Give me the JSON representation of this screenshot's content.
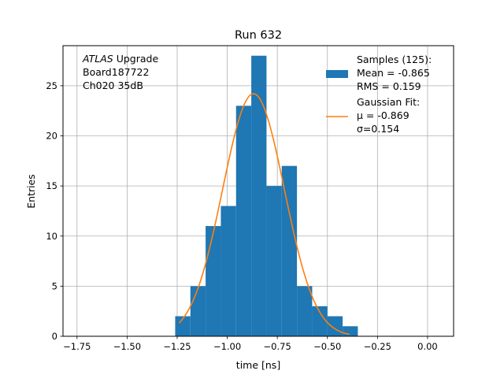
{
  "chart_data": {
    "type": "bar",
    "title": "Run 632",
    "xlabel": "time [ns]",
    "ylabel": "Entries",
    "xlim": [
      -1.82,
      0.13
    ],
    "ylim": [
      0,
      29
    ],
    "grid": true,
    "legend_placement": "top-right",
    "x_ticks": [
      -1.75,
      -1.5,
      -1.25,
      -1.0,
      -0.75,
      -0.5,
      -0.25,
      0.0
    ],
    "x_tick_labels": [
      "−1.75",
      "−1.50",
      "−1.25",
      "−1.00",
      "−0.75",
      "−0.50",
      "−0.25",
      "0.00"
    ],
    "y_ticks": [
      0,
      5,
      10,
      15,
      20,
      25
    ],
    "y_tick_labels": [
      "0",
      "5",
      "10",
      "15",
      "20",
      "25"
    ],
    "histogram": {
      "bin_edges": [
        -1.26,
        -1.184,
        -1.108,
        -1.032,
        -0.956,
        -0.88,
        -0.804,
        -0.728,
        -0.652,
        -0.576,
        -0.5,
        -0.424,
        -0.348
      ],
      "counts": [
        2,
        5,
        11,
        13,
        23,
        28,
        15,
        17,
        5,
        3,
        2,
        1
      ],
      "color": "#1f77b4"
    },
    "fit_curve": {
      "type": "gaussian",
      "amplitude": 24.2,
      "mu": -0.869,
      "sigma": 0.154,
      "x_range": [
        -1.24,
        -0.39
      ],
      "color": "#ff7f0e"
    },
    "annotation_lines": [
      {
        "italic": "ATLAS",
        "text": " Upgrade"
      },
      {
        "italic": "",
        "text": " Board187722"
      },
      {
        "italic": "",
        "text": " Ch020 35dB"
      }
    ],
    "legend": [
      {
        "lines": [
          "Samples (125):",
          " Mean = -0.865",
          " RMS = 0.159"
        ],
        "kind": "patch",
        "color": "#1f77b4"
      },
      {
        "lines": [
          "Gaussian Fit:",
          " μ = -0.869",
          " σ=0.154"
        ],
        "kind": "line",
        "color": "#ff7f0e"
      }
    ]
  }
}
